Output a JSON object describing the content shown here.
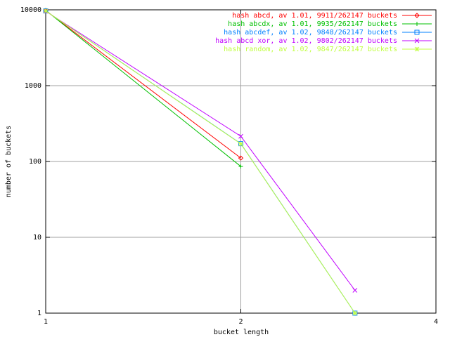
{
  "chart_data": {
    "type": "line",
    "x_label": "bucket length",
    "y_label": "number of buckets",
    "x": [
      1,
      2,
      3
    ],
    "series": [
      {
        "name": "hash abcd, av 1.01, 9911/262147 buckets",
        "color": "#ff0000",
        "marker": "diamond",
        "values": [
          9800,
          111,
          null
        ]
      },
      {
        "name": "hash abcdx, av 1.01, 9935/262147 buckets",
        "color": "#00c000",
        "marker": "plus",
        "values": [
          9849,
          86,
          null
        ]
      },
      {
        "name": "hash abcdef, av 1.02, 9848/262147 buckets",
        "color": "#0080ff",
        "marker": "square",
        "values": [
          9675,
          172,
          1
        ]
      },
      {
        "name": "hash abcd xor, av 1.02, 9802/262147 buckets",
        "color": "#c000ff",
        "marker": "cross",
        "values": [
          9585,
          215,
          2
        ]
      },
      {
        "name": "hash random, av 1.02, 9847/262147 buckets",
        "color": "#c0ff40",
        "marker": "star",
        "values": [
          9675,
          171,
          1
        ]
      }
    ],
    "xlim": [
      1,
      4
    ],
    "xticks": [
      1,
      2,
      4
    ],
    "x_log": true,
    "ylim": [
      1,
      10000
    ],
    "yticks": [
      1,
      10,
      100,
      1000,
      10000
    ],
    "y_log": true,
    "grid": true,
    "legend": "top-right"
  }
}
